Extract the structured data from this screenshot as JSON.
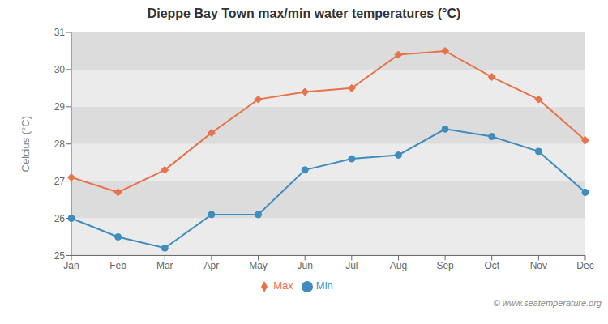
{
  "chart_data": {
    "type": "line",
    "title": "Dieppe Bay Town max/min water temperatures (°C)",
    "y_label": "Celcius (°C)",
    "categories": [
      "Jan",
      "Feb",
      "Mar",
      "Apr",
      "May",
      "Jun",
      "Jul",
      "Aug",
      "Sep",
      "Oct",
      "Nov",
      "Dec"
    ],
    "series": [
      {
        "name": "Max",
        "color": "#e8724a",
        "marker": "diamond",
        "values": [
          27.1,
          26.7,
          27.3,
          28.3,
          29.2,
          29.4,
          29.5,
          30.4,
          30.5,
          29.8,
          29.2,
          28.1
        ]
      },
      {
        "name": "Min",
        "color": "#3f8dbf",
        "marker": "circle",
        "values": [
          26.0,
          25.5,
          25.2,
          26.1,
          26.1,
          27.3,
          27.6,
          27.7,
          28.4,
          28.2,
          27.8,
          26.7
        ]
      }
    ],
    "ylim": [
      25,
      31
    ],
    "yticks": [
      25,
      26,
      27,
      28,
      29,
      30,
      31
    ],
    "grid": false,
    "legend": "bottom",
    "annotation": "© www.seatemperature.org"
  }
}
